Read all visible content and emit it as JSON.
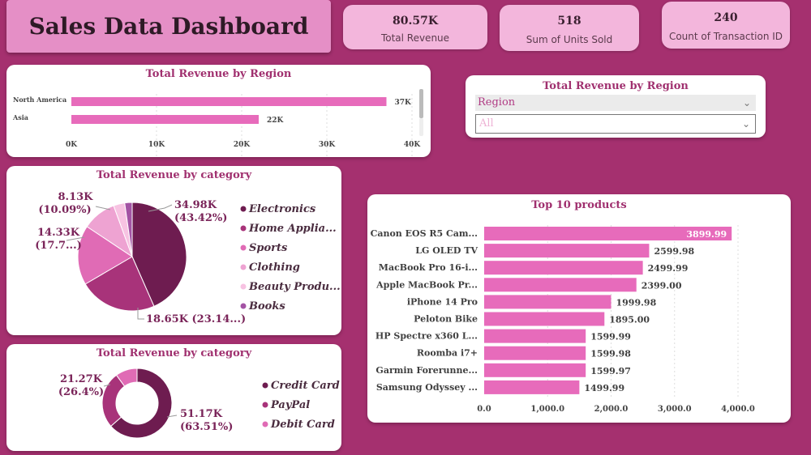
{
  "dashboard_title": "Sales Data Dashboard",
  "kpis": [
    {
      "value": "80.57K",
      "label": "Total Revenue"
    },
    {
      "value": "518",
      "label": "Sum of Units Sold"
    },
    {
      "value": "240",
      "label": "Count of Transaction ID"
    }
  ],
  "region_slicer": {
    "title": "Total Revenue by Region",
    "field": "Region",
    "selected": "All"
  },
  "colors": {
    "background": "#a5306f",
    "bar_pink": "#e76bbb",
    "title_pink": "#a0306f"
  },
  "chart_data": [
    {
      "type": "bar",
      "orientation": "horizontal",
      "title": "Total Revenue by Region",
      "categories": [
        "North America",
        "Asia"
      ],
      "values": [
        37000,
        22000
      ],
      "data_labels": [
        "37K",
        "22K"
      ],
      "xlim": [
        0,
        40000
      ],
      "x_ticks": [
        "0K",
        "10K",
        "20K",
        "30K",
        "40K"
      ]
    },
    {
      "type": "pie",
      "title": "Total Revenue by category",
      "categories": [
        "Electronics",
        "Home Applia...",
        "Sports",
        "Clothing",
        "Beauty Produ...",
        "Books"
      ],
      "values": [
        34.98,
        18.65,
        14.33,
        8.13,
        2.7,
        1.78
      ],
      "colors": [
        "#6e1c50",
        "#a8337a",
        "#e06bb5",
        "#eea3d2",
        "#f7c3e2",
        "#a353a4"
      ],
      "labels": [
        {
          "line1": "34.98K",
          "line2": "(43.42%)"
        },
        {
          "line1": "18.65K (23.14...)",
          "line2": ""
        },
        {
          "line1": "14.33K",
          "line2": "(17.7...)"
        },
        {
          "line1": "8.13K",
          "line2": "(10.09%)"
        }
      ]
    },
    {
      "type": "pie",
      "subtype": "donut",
      "title": "Total Revenue by category",
      "categories": [
        "Credit Card",
        "PayPal",
        "Debit Card"
      ],
      "values": [
        51.17,
        21.27,
        8.13
      ],
      "colors": [
        "#6e1c50",
        "#a8337a",
        "#e06bb5"
      ],
      "labels": [
        {
          "line1": "51.17K",
          "line2": "(63.51%)"
        },
        {
          "line1": "21.27K",
          "line2": "(26.4%)"
        }
      ]
    },
    {
      "type": "bar",
      "orientation": "horizontal",
      "title": "Top 10 products",
      "categories": [
        "Canon EOS R5 Cam...",
        "LG OLED TV",
        "MacBook Pro 16-i...",
        "Apple MacBook Pr...",
        "iPhone 14 Pro",
        "Peloton Bike",
        "HP Spectre x360 L...",
        "Roomba i7+",
        "Garmin Forerunne...",
        "Samsung Odyssey ..."
      ],
      "values": [
        3899.99,
        2599.98,
        2499.99,
        2399.0,
        1999.98,
        1895.0,
        1599.99,
        1599.98,
        1599.97,
        1499.99
      ],
      "data_labels": [
        "3899.99",
        "2599.98",
        "2499.99",
        "2399.00",
        "1999.98",
        "1895.00",
        "1599.99",
        "1599.98",
        "1599.97",
        "1499.99"
      ],
      "xlim": [
        0,
        4000
      ],
      "x_ticks": [
        "0.0",
        "1,000.0",
        "2,000.0",
        "3,000.0",
        "4,000.0"
      ]
    }
  ]
}
